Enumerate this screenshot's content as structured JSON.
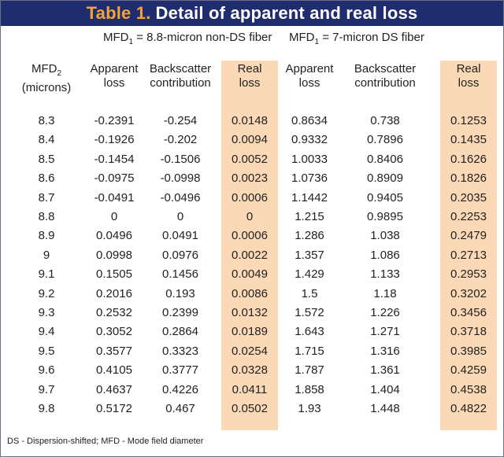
{
  "title": {
    "number": "Table 1.",
    "text": "Detail of apparent and real loss"
  },
  "fiber_groups": [
    {
      "prefix": "MFD",
      "sub": "1",
      "text": " = 8.8-micron non-DS fiber"
    },
    {
      "prefix": "MFD",
      "sub": "1",
      "text": " = 7-micron DS fiber"
    }
  ],
  "headers": [
    {
      "line1": "MFD",
      "sub": "2",
      "line2": "(microns)"
    },
    {
      "line1": "Apparent",
      "line2": "loss"
    },
    {
      "line1": "Backscatter",
      "line2": "contribution"
    },
    {
      "line1": "Real",
      "line2": "loss"
    },
    {
      "line1": "Apparent",
      "line2": "loss"
    },
    {
      "line1": "Backscatter",
      "line2": "contribution"
    },
    {
      "line1": "Real",
      "line2": "loss"
    }
  ],
  "highlight_color": "#fbd9b7",
  "title_bg": "#1f2d6e",
  "title_accent": "#f2a33a",
  "rows": [
    [
      "8.3",
      "-0.2391",
      "-0.254",
      "0.0148",
      "0.8634",
      "0.738",
      "0.1253"
    ],
    [
      "8.4",
      "-0.1926",
      "-0.202",
      "0.0094",
      "0.9332",
      "0.7896",
      "0.1435"
    ],
    [
      "8.5",
      "-0.1454",
      "-0.1506",
      "0.0052",
      "1.0033",
      "0.8406",
      "0.1626"
    ],
    [
      "8.6",
      "-0.0975",
      "-0.0998",
      "0.0023",
      "1.0736",
      "0.8909",
      "0.1826"
    ],
    [
      "8.7",
      "-0.0491",
      "-0.0496",
      "0.0006",
      "1.1442",
      "0.9405",
      "0.2035"
    ],
    [
      "8.8",
      "0",
      "0",
      "0",
      "1.215",
      "0.9895",
      "0.2253"
    ],
    [
      "8.9",
      "0.0496",
      "0.0491",
      "0.0006",
      "1.286",
      "1.038",
      "0.2479"
    ],
    [
      "9",
      "0.0998",
      "0.0976",
      "0.0022",
      "1.357",
      "1.086",
      "0.2713"
    ],
    [
      "9.1",
      "0.1505",
      "0.1456",
      "0.0049",
      "1.429",
      "1.133",
      "0.2953"
    ],
    [
      "9.2",
      "0.2016",
      "0.193",
      "0.0086",
      "1.5",
      "1.18",
      "0.3202"
    ],
    [
      "9.3",
      "0.2532",
      "0.2399",
      "0.0132",
      "1.572",
      "1.226",
      "0.3456"
    ],
    [
      "9.4",
      "0.3052",
      "0.2864",
      "0.0189",
      "1.643",
      "1.271",
      "0.3718"
    ],
    [
      "9.5",
      "0.3577",
      "0.3323",
      "0.0254",
      "1.715",
      "1.316",
      "0.3985"
    ],
    [
      "9.6",
      "0.4105",
      "0.3777",
      "0.0328",
      "1.787",
      "1.361",
      "0.4259"
    ],
    [
      "9.7",
      "0.4637",
      "0.4226",
      "0.0411",
      "1.858",
      "1.404",
      "0.4538"
    ],
    [
      "9.8",
      "0.5172",
      "0.467",
      "0.0502",
      "1.93",
      "1.448",
      "0.4822"
    ]
  ],
  "footnote": "DS - Dispersion-shifted; MFD - Mode field diameter"
}
